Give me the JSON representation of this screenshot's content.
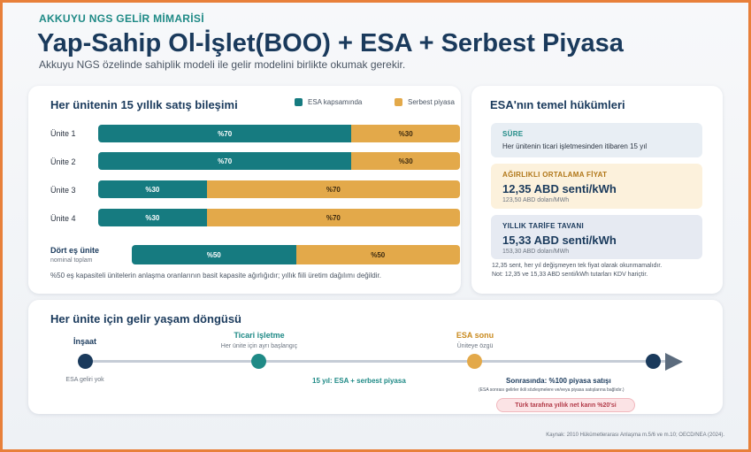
{
  "header": {
    "kicker": "AKKUYU NGS GELİR MİMARİSİ",
    "title": "Yap-Sahip Ol-İşlet(BOO) + ESA + Serbest Piyasa",
    "subtitle": "Akkuyu NGS özelinde sahiplik modeli ile gelir modelini birlikte okumak gerekir."
  },
  "sales_card": {
    "title": "Her ünitenin 15 yıllık satış bileşimi",
    "legend": [
      {
        "label": "ESA kapsamında",
        "color": "#167b80"
      },
      {
        "label": "Serbest piyasa",
        "color": "#e3a94a"
      }
    ],
    "units": [
      {
        "label": "Ünite 1",
        "esa_pct": 70,
        "free_pct": 30,
        "esa_text": "%70",
        "free_text": "%30"
      },
      {
        "label": "Ünite 2",
        "esa_pct": 70,
        "free_pct": 30,
        "esa_text": "%70",
        "free_text": "%30"
      },
      {
        "label": "Ünite 3",
        "esa_pct": 30,
        "free_pct": 70,
        "esa_text": "%30",
        "free_text": "%70"
      },
      {
        "label": "Ünite 4",
        "esa_pct": 30,
        "free_pct": 70,
        "esa_text": "%30",
        "free_text": "%70"
      }
    ],
    "total": {
      "label": "Dört eş ünite",
      "sub": "nominal toplam",
      "esa_pct": 50,
      "free_pct": 50,
      "esa_text": "%50",
      "free_text": "%50"
    },
    "footnote": "%50 eş kapasiteli ünitelerin anlaşma oranlarının basit kapasite ağırlığıdır; yıllık fiili üretim dağılımı değildir."
  },
  "esa_card": {
    "title": "ESA'nın temel hükümleri",
    "duration": {
      "label": "SÜRE",
      "text": "Her ünitenin ticari işletmesinden itibaren 15 yıl"
    },
    "avg_price": {
      "label": "AĞIRLIKLI ORTALAMA FİYAT",
      "value": "12,35 ABD senti/kWh",
      "sub": "123,50 ABD doları/MWh"
    },
    "cap": {
      "label": "YILLIK TARİFE TAVANI",
      "value": "15,33 ABD senti/kWh",
      "sub": "153,30 ABD doları/MWh"
    },
    "note1": "12,35 sent, her yıl değişmeyen tek fiyat olarak okunmamalıdır.",
    "note2": "Not: 12,35 ve 15,33 ABD senti/kWh tutarları KDV hariçtir."
  },
  "lifecycle": {
    "title": "Her ünite için gelir yaşam döngüsü",
    "stages": [
      {
        "head": "İnşaat",
        "sub": "ESA geliri yok",
        "color": "#1a3a5c"
      },
      {
        "head": "Ticari işletme",
        "sub": "Her ünite için ayrı başlangıç",
        "color": "#1f8a86"
      },
      {
        "head": "ESA sonu",
        "sub": "Üniteye özgü",
        "color": "#c98a1e"
      }
    ],
    "mid_label": "15 yıl: ESA + serbest piyasa",
    "after_label": "Sonrasında: %100 piyasa satışı",
    "after_sub": "(ESA sonrası gelirler ikili sözleşmelere ve/veya piyasa satışlarına bağlıdır.)",
    "pill": "Türk tarafına yıllık net karın %20'si"
  },
  "source": "Kaynak: 2010 Hükümetlerarası Anlaşma m.5/6 ve m.10; OECD/NEA (2024)."
}
